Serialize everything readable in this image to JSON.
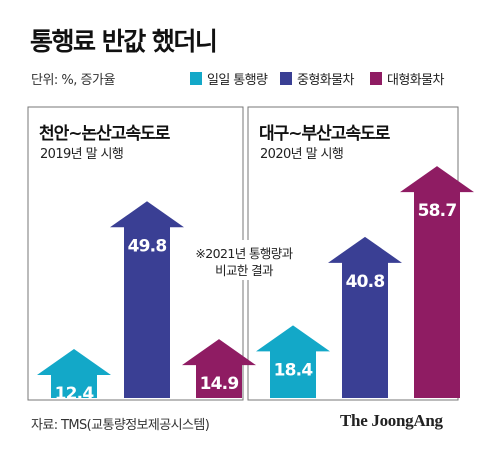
{
  "header": {
    "title": "통행료 반값 했더니",
    "unit_note": "단위: %, 증가율"
  },
  "legend": [
    {
      "label": "일일 통행량",
      "color": "#13a8c8"
    },
    {
      "label": "중형화물차",
      "color": "#3a3f94"
    },
    {
      "label": "대형화물차",
      "color": "#8f1c63"
    }
  ],
  "footnote": [
    "※2021년 통행량과",
    "비교한 결과"
  ],
  "footer": {
    "source": "자료: TMS(교통량정보제공시스템)",
    "brand": "The JoongAng"
  },
  "chart_data": [
    {
      "type": "bar",
      "panel_title": "천안~논산고속도로",
      "panel_subtitle": "2019년 말 시행",
      "categories": [
        "일일 통행량",
        "중형화물차",
        "대형화물차"
      ],
      "values": [
        12.4,
        49.8,
        14.9
      ],
      "colors": [
        "#13a8c8",
        "#3a3f94",
        "#8f1c63"
      ],
      "ylim": [
        0,
        62
      ]
    },
    {
      "type": "bar",
      "panel_title": "대구~부산고속도로",
      "panel_subtitle": "2020년 말 시행",
      "categories": [
        "일일 통행량",
        "중형화물차",
        "대형화물차"
      ],
      "values": [
        18.4,
        40.8,
        58.7
      ],
      "colors": [
        "#13a8c8",
        "#3a3f94",
        "#8f1c63"
      ],
      "ylim": [
        0,
        62
      ]
    }
  ]
}
